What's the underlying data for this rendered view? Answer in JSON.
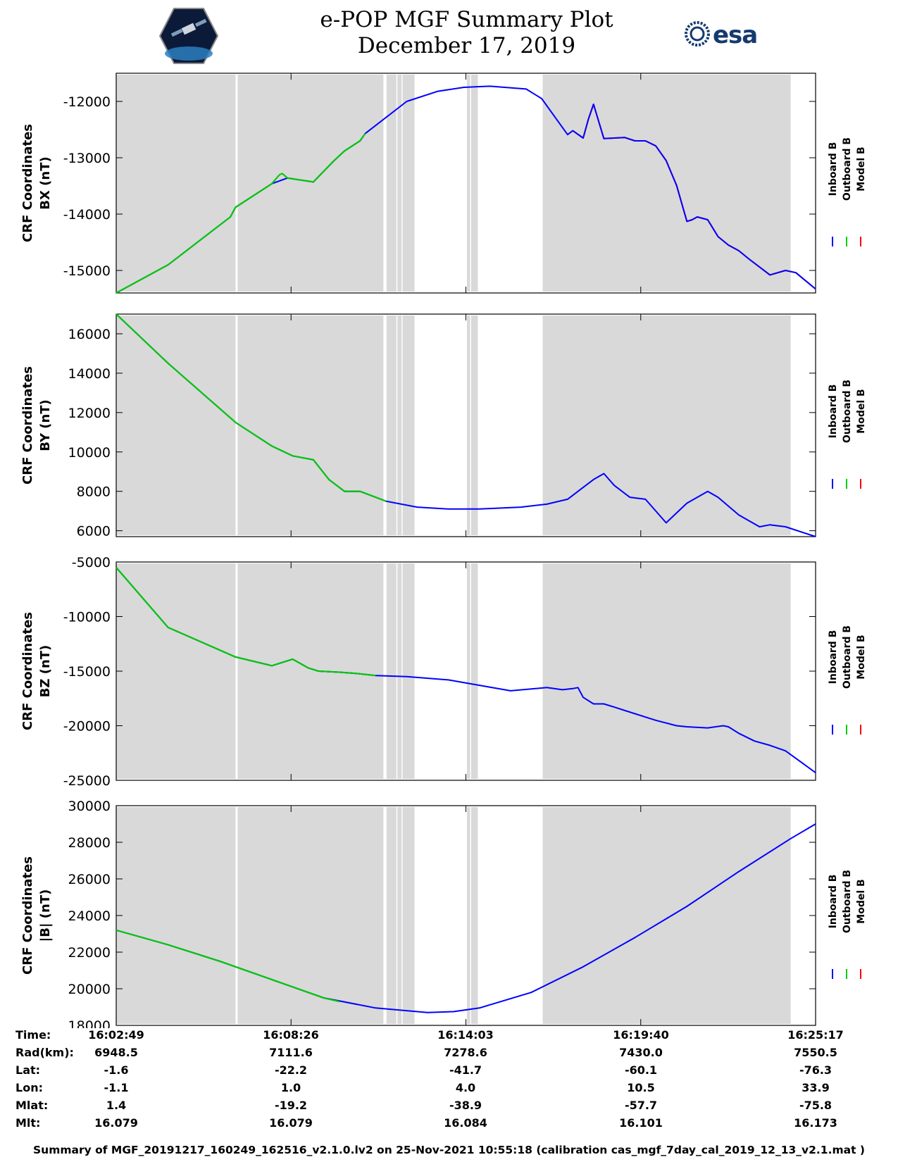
{
  "header": {
    "title_line1": "e-POP MGF Summary Plot",
    "title_line2": "December 17, 2019",
    "left_logo": "cassiope-mission-logo",
    "right_logo_text": "esa"
  },
  "colors": {
    "inboard": "#0000ff",
    "outboard": "#00cc00",
    "model": "#ff0000",
    "shade": "#d9d9d9"
  },
  "legend": {
    "labels": [
      "Inboard B",
      "Outboard B",
      "Model B"
    ]
  },
  "chart_data": [
    {
      "type": "line",
      "title": "",
      "ylabel_line1": "CRF Coordinates",
      "ylabel_line2": "BX (nT)",
      "ylim": [
        -15400,
        -11500
      ],
      "yticks": [
        -12000,
        -13000,
        -14000,
        -15000
      ],
      "ytick_labels": [
        "-12000",
        "-13000",
        "-14000",
        "-15000"
      ],
      "xlim": [
        0,
        1348
      ],
      "xticks": [
        0,
        337,
        674,
        1011,
        1348
      ],
      "series": [
        {
          "name": "Inboard B",
          "color": "#0000ff",
          "x": [
            0,
            100,
            220,
            230,
            300,
            330,
            380,
            420,
            440,
            470,
            480,
            560,
            620,
            670,
            720,
            790,
            820,
            870,
            880,
            900,
            910,
            920,
            940,
            960,
            980,
            1000,
            1020,
            1040,
            1060,
            1080,
            1100,
            1110,
            1120,
            1140,
            1160,
            1180,
            1200,
            1220,
            1260,
            1290,
            1310,
            1348
          ],
          "y": [
            -15400,
            -14900,
            -14050,
            -13880,
            -13460,
            -13360,
            -13430,
            -13050,
            -12880,
            -12700,
            -12570,
            -12000,
            -11820,
            -11750,
            -11730,
            -11780,
            -11950,
            -12590,
            -12520,
            -12650,
            -12320,
            -12050,
            -12660,
            -12650,
            -12640,
            -12700,
            -12700,
            -12790,
            -13050,
            -13490,
            -14130,
            -14100,
            -14050,
            -14100,
            -14400,
            -14550,
            -14650,
            -14800,
            -15080,
            -15000,
            -15040,
            -15330
          ]
        },
        {
          "name": "Outboard B",
          "color": "#00cc00",
          "x": [
            0,
            100,
            220,
            230,
            300,
            315,
            320,
            330,
            380,
            420,
            440,
            470,
            480
          ],
          "y": [
            -15400,
            -14900,
            -14050,
            -13880,
            -13460,
            -13300,
            -13280,
            -13360,
            -13430,
            -13050,
            -12880,
            -12700,
            -12570
          ]
        },
        {
          "name": "Model B",
          "color": "#ff0000",
          "x": [
            880,
            900,
            910,
            920,
            940,
            960,
            980,
            1000,
            1020,
            1040,
            1060,
            1080,
            1100,
            1110,
            1120,
            1140,
            1160,
            1180,
            1200,
            1220,
            1260,
            1290,
            1310,
            1348
          ],
          "y": [
            -12520,
            -12650,
            -12320,
            -12050,
            -12660,
            -12650,
            -12640,
            -12700,
            -12700,
            -12790,
            -13050,
            -13490,
            -14130,
            -14100,
            -14050,
            -14100,
            -14400,
            -14550,
            -14650,
            -14800,
            -15080,
            -15000,
            -15040,
            -15330
          ]
        }
      ]
    },
    {
      "type": "line",
      "title": "",
      "ylabel_line1": "CRF Coordinates",
      "ylabel_line2": "BY (nT)",
      "ylim": [
        5700,
        17000
      ],
      "yticks": [
        16000,
        14000,
        12000,
        10000,
        8000,
        6000
      ],
      "ytick_labels": [
        "16000",
        "14000",
        "12000",
        "10000",
        "8000",
        "6000"
      ],
      "xlim": [
        0,
        1348
      ],
      "xticks": [
        0,
        337,
        674,
        1011,
        1348
      ],
      "series": [
        {
          "name": "Inboard B",
          "color": "#0000ff",
          "x": [
            0,
            100,
            230,
            300,
            340,
            380,
            410,
            440,
            470,
            520,
            580,
            640,
            700,
            780,
            830,
            870,
            900,
            920,
            940,
            960,
            990,
            1020,
            1060,
            1100,
            1140,
            1160,
            1200,
            1240,
            1260,
            1290,
            1348
          ],
          "y": [
            17000,
            14500,
            11500,
            10300,
            9800,
            9600,
            8600,
            8000,
            8000,
            7500,
            7200,
            7100,
            7100,
            7200,
            7350,
            7600,
            8200,
            8600,
            8900,
            8300,
            7700,
            7600,
            6400,
            7400,
            8000,
            7700,
            6800,
            6200,
            6300,
            6200,
            5700
          ]
        },
        {
          "name": "Outboard B",
          "color": "#00cc00",
          "x": [
            0,
            100,
            230,
            300,
            340,
            380,
            410,
            440,
            470,
            520
          ],
          "y": [
            17000,
            14500,
            11500,
            10300,
            9800,
            9600,
            8600,
            8000,
            8000,
            7500
          ]
        },
        {
          "name": "Model B",
          "color": "#ff0000",
          "x": [],
          "y": []
        }
      ]
    },
    {
      "type": "line",
      "title": "",
      "ylabel_line1": "CRF Coordinates",
      "ylabel_line2": "BZ (nT)",
      "ylim": [
        -25000,
        -5000
      ],
      "yticks": [
        -5000,
        -10000,
        -15000,
        -20000,
        -25000
      ],
      "ytick_labels": [
        "-5000",
        "-10000",
        "-15000",
        "-20000",
        "-25000"
      ],
      "xlim": [
        0,
        1348
      ],
      "xticks": [
        0,
        337,
        674,
        1011,
        1348
      ],
      "series": [
        {
          "name": "Inboard B",
          "color": "#0000ff",
          "x": [
            0,
            100,
            230,
            300,
            340,
            370,
            390,
            430,
            460,
            500,
            560,
            640,
            700,
            760,
            830,
            860,
            880,
            890,
            900,
            920,
            940,
            960,
            1000,
            1040,
            1080,
            1100,
            1140,
            1170,
            1180,
            1200,
            1230,
            1260,
            1290,
            1348
          ],
          "y": [
            -5500,
            -11000,
            -13700,
            -14500,
            -13900,
            -14700,
            -15000,
            -15100,
            -15200,
            -15400,
            -15500,
            -15800,
            -16300,
            -16800,
            -16500,
            -16700,
            -16600,
            -16500,
            -17400,
            -18000,
            -18000,
            -18300,
            -18900,
            -19500,
            -20000,
            -20100,
            -20200,
            -20000,
            -20100,
            -20700,
            -21400,
            -21800,
            -22300,
            -24300
          ]
        },
        {
          "name": "Outboard B",
          "color": "#00cc00",
          "x": [
            0,
            100,
            230,
            300,
            340,
            370,
            390,
            430,
            460,
            500
          ],
          "y": [
            -5500,
            -11000,
            -13700,
            -14500,
            -13900,
            -14700,
            -15000,
            -15100,
            -15200,
            -15400
          ]
        },
        {
          "name": "Model B",
          "color": "#ff0000",
          "x": [],
          "y": []
        }
      ]
    },
    {
      "type": "line",
      "title": "",
      "ylabel_line1": "CRF Coordinates",
      "ylabel_line2": "|B| (nT)",
      "ylim": [
        18000,
        30000
      ],
      "yticks": [
        30000,
        28000,
        26000,
        24000,
        22000,
        20000,
        18000
      ],
      "ytick_labels": [
        "30000",
        "28000",
        "26000",
        "24000",
        "22000",
        "20000",
        "18000"
      ],
      "xlim": [
        0,
        1348
      ],
      "xticks": [
        0,
        337,
        674,
        1011,
        1348
      ],
      "series": [
        {
          "name": "Inboard B",
          "color": "#0000ff",
          "x": [
            0,
            100,
            200,
            300,
            400,
            500,
            600,
            650,
            700,
            800,
            900,
            1000,
            1100,
            1200,
            1300,
            1348
          ],
          "y": [
            23200,
            22400,
            21500,
            20500,
            19500,
            18950,
            18700,
            18750,
            18950,
            19800,
            21200,
            22800,
            24500,
            26400,
            28200,
            29000
          ]
        },
        {
          "name": "Outboard B",
          "color": "#00cc00",
          "x": [
            0,
            100,
            200,
            300,
            400,
            430
          ],
          "y": [
            23200,
            22400,
            21500,
            20500,
            19500,
            19300
          ]
        },
        {
          "name": "Model B",
          "color": "#ff0000",
          "x": [],
          "y": []
        }
      ]
    }
  ],
  "shaded_intervals": [
    [
      0,
      230
    ],
    [
      234,
      515
    ],
    [
      521,
      540
    ],
    [
      542,
      550
    ],
    [
      552,
      575
    ],
    [
      676,
      682
    ],
    [
      684,
      697
    ],
    [
      822,
      1300
    ]
  ],
  "info_table": {
    "labels": [
      "Time:",
      "Rad(km):",
      "Lat:",
      "Lon:",
      "Mlat:",
      "Mlt:"
    ],
    "columns": [
      [
        "16:02:49",
        "6948.5",
        "-1.6",
        "-1.1",
        "1.4",
        "16.079"
      ],
      [
        "16:08:26",
        "7111.6",
        "-22.2",
        "1.0",
        "-19.2",
        "16.079"
      ],
      [
        "16:14:03",
        "7278.6",
        "-41.7",
        "4.0",
        "-38.9",
        "16.084"
      ],
      [
        "16:19:40",
        "7430.0",
        "-60.1",
        "10.5",
        "-57.7",
        "16.101"
      ],
      [
        "16:25:17",
        "7550.5",
        "-76.3",
        "33.9",
        "-75.8",
        "16.173"
      ]
    ]
  },
  "footer": "Summary of MGF_20191217_160249_162516_v2.1.0.lv2 on 25-Nov-2021 10:55:18 (calibration cas_mgf_7day_cal_2019_12_13_v2.1.mat )"
}
